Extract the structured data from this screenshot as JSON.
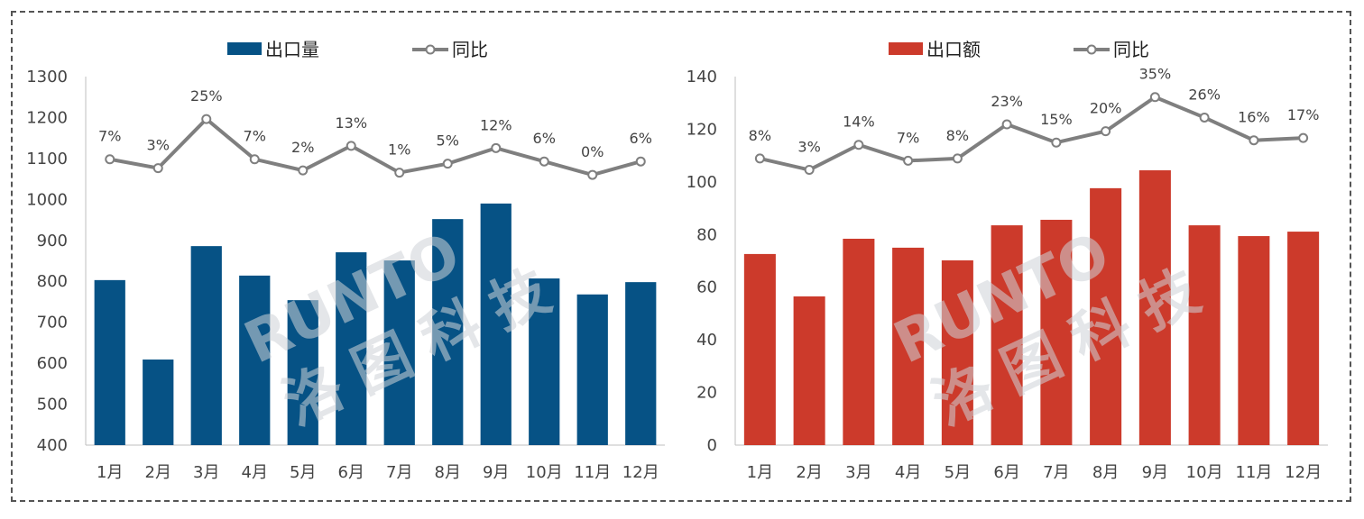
{
  "watermark": {
    "latin": "RUNTO",
    "cjk": "洛图科技"
  },
  "chart_data": [
    {
      "type": "bar",
      "categories": [
        "1月",
        "2月",
        "3月",
        "4月",
        "5月",
        "6月",
        "7月",
        "8月",
        "9月",
        "10月",
        "11月",
        "12月"
      ],
      "series": [
        {
          "name": "出口量",
          "kind": "bar",
          "color": "#065285",
          "values": [
            803,
            609,
            886,
            814,
            754,
            871,
            851,
            952,
            990,
            807,
            768,
            798
          ]
        },
        {
          "name": "同比",
          "kind": "line",
          "color": "#7f7f7f",
          "values": [
            7,
            3,
            25,
            7,
            2,
            13,
            1,
            5,
            12,
            6,
            0,
            6
          ],
          "labels": [
            "7%",
            "3%",
            "25%",
            "7%",
            "2%",
            "13%",
            "1%",
            "5%",
            "12%",
            "6%",
            "0%",
            "6%"
          ]
        }
      ],
      "ylim": [
        400,
        1300
      ],
      "yticks": [
        400,
        500,
        600,
        700,
        800,
        900,
        1000,
        1100,
        1200,
        1300
      ],
      "y2lim": [
        -121,
        44
      ],
      "legend": "top-center"
    },
    {
      "type": "bar",
      "categories": [
        "1月",
        "2月",
        "3月",
        "4月",
        "5月",
        "6月",
        "7月",
        "8月",
        "9月",
        "10月",
        "11月",
        "12月"
      ],
      "series": [
        {
          "name": "出口额",
          "kind": "bar",
          "color": "#cc3a2b",
          "values": [
            72.6,
            56.5,
            78.4,
            75,
            70.2,
            83.5,
            85.6,
            97.6,
            104.4,
            83.5,
            79.4,
            81.1
          ]
        },
        {
          "name": "同比",
          "kind": "line",
          "color": "#7f7f7f",
          "values": [
            8,
            3,
            14,
            7,
            8,
            23,
            15,
            20,
            35,
            26,
            16,
            17
          ],
          "labels": [
            "8%",
            "3%",
            "14%",
            "7%",
            "8%",
            "23%",
            "15%",
            "20%",
            "35%",
            "26%",
            "16%",
            "17%"
          ]
        }
      ],
      "ylim": [
        0,
        140
      ],
      "yticks": [
        0,
        20,
        40,
        60,
        80,
        100,
        120,
        140
      ],
      "y2lim": [
        -118,
        44
      ],
      "legend": "top-center"
    }
  ]
}
